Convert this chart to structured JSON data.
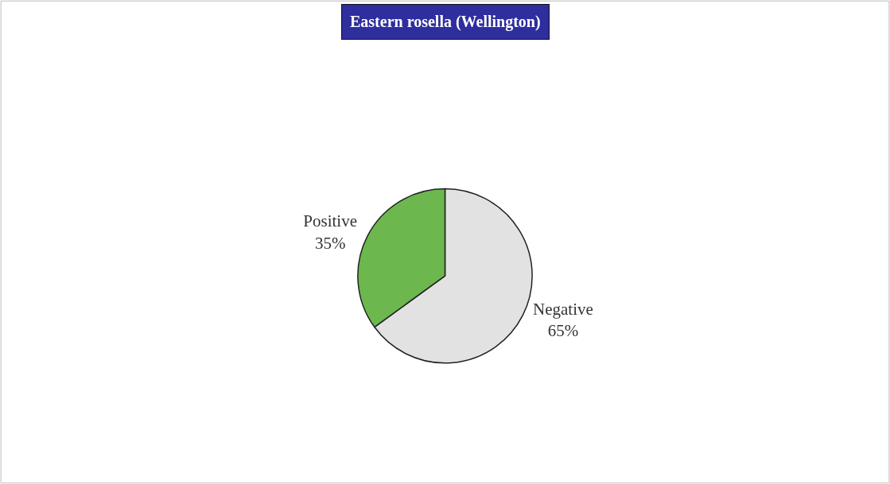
{
  "chart_data": {
    "type": "pie",
    "title": "Eastern rosella (Wellington)",
    "categories": [
      "Negative",
      "Positive"
    ],
    "values": [
      65,
      35
    ],
    "value_labels": [
      "65%",
      "35%"
    ],
    "colors": [
      "#e2e2e2",
      "#6cb84e"
    ],
    "legend": false
  }
}
